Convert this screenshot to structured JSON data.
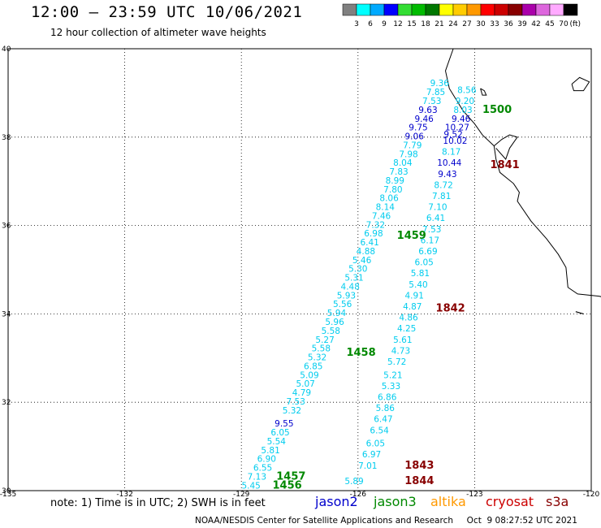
{
  "title": "12:00 – 23:59 UTC 10/06/2021",
  "subtitle": "12 hour collection of altimeter wave heights",
  "legend": {
    "unit": "(ft)",
    "colors": [
      "#808080",
      "#00ffff",
      "#00aaff",
      "#0000ff",
      "#33dd33",
      "#00bb00",
      "#007700",
      "#ffff00",
      "#ffcc00",
      "#ff9900",
      "#ff0000",
      "#cc0000",
      "#880000",
      "#aa00aa",
      "#dd66dd",
      "#ffaaff",
      "#000000"
    ],
    "labels": [
      "3",
      "6",
      "9",
      "12",
      "15",
      "18",
      "21",
      "24",
      "27",
      "30",
      "33",
      "36",
      "39",
      "42",
      "45",
      "70"
    ]
  },
  "axes": {
    "x_ticks": [
      "-135",
      "-132",
      "-129",
      "-126",
      "-123",
      "-120"
    ],
    "y_ticks": [
      "40",
      "38",
      "36",
      "34",
      "32",
      "30"
    ]
  },
  "note": "note: 1) Time is in UTC; 2) SWH is in feet",
  "satellites": [
    {
      "name": "jason2",
      "color": "#0000cc"
    },
    {
      "name": "jason3",
      "color": "#008800"
    },
    {
      "name": "altika",
      "color": "#ff9900"
    },
    {
      "name": "cryosat",
      "color": "#cc0000"
    },
    {
      "name": "s3a",
      "color": "#880000"
    }
  ],
  "credit": "NOAA/NESDIS Center for Satellite Applications and Research     Oct  9 08:27:52 UTC 2021",
  "map_data": {
    "track_time_labels": [
      {
        "text": "1500",
        "color": "#008800",
        "lon": -122.8,
        "lat": 38.55
      },
      {
        "text": "1841",
        "color": "#880000",
        "lon": -122.6,
        "lat": 37.3
      },
      {
        "text": "1459",
        "color": "#008800",
        "lon": -125.0,
        "lat": 35.7
      },
      {
        "text": "1842",
        "color": "#880000",
        "lon": -124.0,
        "lat": 34.05
      },
      {
        "text": "1458",
        "color": "#008800",
        "lon": -126.3,
        "lat": 33.05
      },
      {
        "text": "1843",
        "color": "#880000",
        "lon": -124.8,
        "lat": 30.5
      },
      {
        "text": "1457",
        "color": "#008800",
        "lon": -128.1,
        "lat": 30.25
      },
      {
        "text": "1844",
        "color": "#880000",
        "lon": -124.8,
        "lat": 30.15
      },
      {
        "text": "1456",
        "color": "#008800",
        "lon": -128.2,
        "lat": 30.05
      }
    ],
    "track_a": [
      {
        "v": "5.45",
        "c": "#00ccee",
        "lon": -128.75,
        "lat": 30.05
      },
      {
        "v": "7.13",
        "c": "#00ccee",
        "lon": -128.6,
        "lat": 30.25
      },
      {
        "v": "6.55",
        "c": "#00ccee",
        "lon": -128.45,
        "lat": 30.45
      },
      {
        "v": "6.90",
        "c": "#00ccee",
        "lon": -128.35,
        "lat": 30.65
      },
      {
        "v": "5.81",
        "c": "#00ccee",
        "lon": -128.25,
        "lat": 30.85
      },
      {
        "v": "5.54",
        "c": "#00ccee",
        "lon": -128.1,
        "lat": 31.05
      },
      {
        "v": "6.05",
        "c": "#00ccee",
        "lon": -128.0,
        "lat": 31.25
      },
      {
        "v": "9.55",
        "c": "#0000cc",
        "lon": -127.9,
        "lat": 31.45
      },
      {
        "v": "5.32",
        "c": "#00ccee",
        "lon": -127.7,
        "lat": 31.75
      },
      {
        "v": "7.53",
        "c": "#00ccee",
        "lon": -127.6,
        "lat": 31.95
      },
      {
        "v": "4.79",
        "c": "#00ccee",
        "lon": -127.45,
        "lat": 32.15
      },
      {
        "v": "5.07",
        "c": "#00ccee",
        "lon": -127.35,
        "lat": 32.35
      },
      {
        "v": "5.09",
        "c": "#00ccee",
        "lon": -127.25,
        "lat": 32.55
      },
      {
        "v": "6.85",
        "c": "#00ccee",
        "lon": -127.15,
        "lat": 32.75
      },
      {
        "v": "5.32",
        "c": "#00ccee",
        "lon": -127.05,
        "lat": 32.95
      },
      {
        "v": "5.58",
        "c": "#00ccee",
        "lon": -126.95,
        "lat": 33.15
      },
      {
        "v": "5.27",
        "c": "#00ccee",
        "lon": -126.85,
        "lat": 33.35
      },
      {
        "v": "5.58",
        "c": "#00ccee",
        "lon": -126.7,
        "lat": 33.55
      },
      {
        "v": "5.96",
        "c": "#00ccee",
        "lon": -126.6,
        "lat": 33.75
      },
      {
        "v": "5.94",
        "c": "#00ccee",
        "lon": -126.55,
        "lat": 33.95
      },
      {
        "v": "5.56",
        "c": "#00ccee",
        "lon": -126.4,
        "lat": 34.15
      },
      {
        "v": "5.93",
        "c": "#00ccee",
        "lon": -126.3,
        "lat": 34.35
      },
      {
        "v": "4.48",
        "c": "#00ccee",
        "lon": -126.2,
        "lat": 34.55
      },
      {
        "v": "5.31",
        "c": "#00ccee",
        "lon": -126.1,
        "lat": 34.75
      },
      {
        "v": "5.30",
        "c": "#00ccee",
        "lon": -126.0,
        "lat": 34.95
      },
      {
        "v": "5.46",
        "c": "#00ccee",
        "lon": -125.9,
        "lat": 35.15
      },
      {
        "v": "4.88",
        "c": "#00ccee",
        "lon": -125.8,
        "lat": 35.35
      },
      {
        "v": "6.41",
        "c": "#00ccee",
        "lon": -125.7,
        "lat": 35.55
      },
      {
        "v": "6.98",
        "c": "#00ccee",
        "lon": -125.6,
        "lat": 35.75
      },
      {
        "v": "7.32",
        "c": "#00ccee",
        "lon": -125.55,
        "lat": 35.95
      },
      {
        "v": "7.46",
        "c": "#00ccee",
        "lon": -125.4,
        "lat": 36.15
      },
      {
        "v": "8.14",
        "c": "#00ccee",
        "lon": -125.3,
        "lat": 36.35
      },
      {
        "v": "8.06",
        "c": "#00ccee",
        "lon": -125.2,
        "lat": 36.55
      },
      {
        "v": "7.80",
        "c": "#00ccee",
        "lon": -125.1,
        "lat": 36.75
      },
      {
        "v": "8.99",
        "c": "#00ccee",
        "lon": -125.05,
        "lat": 36.95
      },
      {
        "v": "7.83",
        "c": "#00ccee",
        "lon": -124.95,
        "lat": 37.15
      },
      {
        "v": "8.04",
        "c": "#00ccee",
        "lon": -124.85,
        "lat": 37.35
      },
      {
        "v": "7.98",
        "c": "#00ccee",
        "lon": -124.7,
        "lat": 37.55
      },
      {
        "v": "7.79",
        "c": "#00ccee",
        "lon": -124.6,
        "lat": 37.75
      },
      {
        "v": "9.06",
        "c": "#0000cc",
        "lon": -124.55,
        "lat": 37.95
      },
      {
        "v": "9.75",
        "c": "#0000cc",
        "lon": -124.45,
        "lat": 38.15
      },
      {
        "v": "9.46",
        "c": "#0000cc",
        "lon": -124.3,
        "lat": 38.35
      },
      {
        "v": "9.63",
        "c": "#0000cc",
        "lon": -124.2,
        "lat": 38.55
      },
      {
        "v": "7.53",
        "c": "#00ccee",
        "lon": -124.1,
        "lat": 38.75
      },
      {
        "v": "7.85",
        "c": "#00ccee",
        "lon": -124.0,
        "lat": 38.95
      },
      {
        "v": "9.36",
        "c": "#00ccee",
        "lon": -123.9,
        "lat": 39.15
      }
    ],
    "track_b": [
      {
        "v": "5.89",
        "c": "#00ccee",
        "lon": -126.1,
        "lat": 30.15
      },
      {
        "v": "7.01",
        "c": "#00ccee",
        "lon": -125.75,
        "lat": 30.5
      },
      {
        "v": "6.97",
        "c": "#00ccee",
        "lon": -125.65,
        "lat": 30.75
      },
      {
        "v": "6.05",
        "c": "#00ccee",
        "lon": -125.55,
        "lat": 31.0
      },
      {
        "v": "6.54",
        "c": "#00ccee",
        "lon": -125.45,
        "lat": 31.3
      },
      {
        "v": "6.47",
        "c": "#00ccee",
        "lon": -125.35,
        "lat": 31.55
      },
      {
        "v": "5.86",
        "c": "#00ccee",
        "lon": -125.3,
        "lat": 31.8
      },
      {
        "v": "6.86",
        "c": "#00ccee",
        "lon": -125.25,
        "lat": 32.05
      },
      {
        "v": "5.33",
        "c": "#00ccee",
        "lon": -125.15,
        "lat": 32.3
      },
      {
        "v": "5.21",
        "c": "#00ccee",
        "lon": -125.1,
        "lat": 32.55
      },
      {
        "v": "5.72",
        "c": "#00ccee",
        "lon": -125.0,
        "lat": 32.85
      },
      {
        "v": "4.73",
        "c": "#00ccee",
        "lon": -124.9,
        "lat": 33.1
      },
      {
        "v": "5.61",
        "c": "#00ccee",
        "lon": -124.85,
        "lat": 33.35
      },
      {
        "v": "4.25",
        "c": "#00ccee",
        "lon": -124.75,
        "lat": 33.6
      },
      {
        "v": "4.86",
        "c": "#00ccee",
        "lon": -124.7,
        "lat": 33.85
      },
      {
        "v": "4.87",
        "c": "#00ccee",
        "lon": -124.6,
        "lat": 34.1
      },
      {
        "v": "4.91",
        "c": "#00ccee",
        "lon": -124.55,
        "lat": 34.35
      },
      {
        "v": "5.40",
        "c": "#00ccee",
        "lon": -124.45,
        "lat": 34.6
      },
      {
        "v": "5.81",
        "c": "#00ccee",
        "lon": -124.4,
        "lat": 34.85
      },
      {
        "v": "6.05",
        "c": "#00ccee",
        "lon": -124.3,
        "lat": 35.1
      },
      {
        "v": "6.69",
        "c": "#00ccee",
        "lon": -124.2,
        "lat": 35.35
      },
      {
        "v": "6.17",
        "c": "#00ccee",
        "lon": -124.15,
        "lat": 35.6
      },
      {
        "v": "7.53",
        "c": "#00ccee",
        "lon": -124.1,
        "lat": 35.85
      },
      {
        "v": "6.41",
        "c": "#00ccee",
        "lon": -124.0,
        "lat": 36.1
      },
      {
        "v": "7.10",
        "c": "#00ccee",
        "lon": -123.95,
        "lat": 36.35
      },
      {
        "v": "7.81",
        "c": "#00ccee",
        "lon": -123.85,
        "lat": 36.6
      },
      {
        "v": "8.72",
        "c": "#00ccee",
        "lon": -123.8,
        "lat": 36.85
      },
      {
        "v": "9.43",
        "c": "#0000cc",
        "lon": -123.7,
        "lat": 37.1
      },
      {
        "v": "10.44",
        "c": "#0000cc",
        "lon": -123.65,
        "lat": 37.35
      },
      {
        "v": "8.17",
        "c": "#00ccee",
        "lon": -123.6,
        "lat": 37.6
      },
      {
        "v": "10.02",
        "c": "#0000cc",
        "lon": -123.5,
        "lat": 37.85
      },
      {
        "v": "9.52",
        "c": "#0000cc",
        "lon": -123.55,
        "lat": 38.0
      },
      {
        "v": "10.27",
        "c": "#0000cc",
        "lon": -123.45,
        "lat": 38.15
      },
      {
        "v": "9.46",
        "c": "#0000cc",
        "lon": -123.35,
        "lat": 38.35
      },
      {
        "v": "8.03",
        "c": "#00ccee",
        "lon": -123.3,
        "lat": 38.55
      },
      {
        "v": "9.20",
        "c": "#00ccee",
        "lon": -123.25,
        "lat": 38.75
      },
      {
        "v": "8.56",
        "c": "#00ccee",
        "lon": -123.2,
        "lat": 39.0
      }
    ]
  }
}
